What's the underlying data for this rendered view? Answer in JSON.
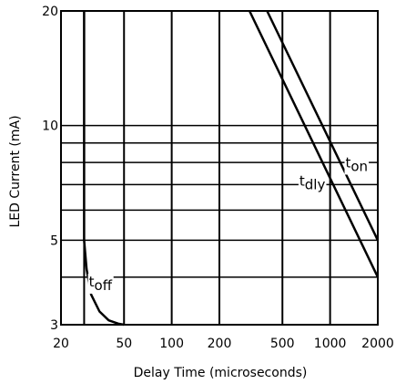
{
  "chart_data": {
    "type": "line",
    "title": "",
    "xlabel": "Delay Time (microseconds)",
    "ylabel": "LED Current (mA)",
    "x_scale": "log",
    "y_scale": "log",
    "xlim": [
      20,
      2000
    ],
    "ylim": [
      3,
      20
    ],
    "x_ticks": [
      {
        "value": 20,
        "label": "20"
      },
      {
        "value": 50,
        "label": "50"
      },
      {
        "value": 100,
        "label": "100"
      },
      {
        "value": 200,
        "label": "200"
      },
      {
        "value": 500,
        "label": "500"
      },
      {
        "value": 1000,
        "label": "1000"
      },
      {
        "value": 2000,
        "label": "2000"
      }
    ],
    "y_ticks": [
      {
        "value": 3,
        "label": "3"
      },
      {
        "value": 5,
        "label": "5"
      },
      {
        "value": 10,
        "label": "10"
      },
      {
        "value": 20,
        "label": "20"
      }
    ],
    "x_grid": [
      20,
      28,
      50,
      100,
      200,
      500,
      1000,
      2000
    ],
    "y_grid": [
      3,
      4,
      5,
      6,
      7,
      8,
      9,
      10,
      20
    ],
    "grid": true,
    "legend": "none",
    "series": [
      {
        "key": "toff",
        "label_main": "t",
        "label_sub": "off",
        "label_at": [
          30,
          3.7
        ],
        "points": [
          [
            28,
            20
          ],
          [
            28,
            5
          ],
          [
            29,
            4.2
          ],
          [
            31,
            3.6
          ],
          [
            35,
            3.25
          ],
          [
            40,
            3.08
          ],
          [
            46,
            3.02
          ],
          [
            50,
            3.0
          ]
        ]
      },
      {
        "key": "tdly",
        "label_main": "t",
        "label_sub": "dly",
        "label_at": [
          640,
          6.8
        ],
        "points": [
          [
            310,
            20
          ],
          [
            2000,
            4.0
          ]
        ]
      },
      {
        "key": "ton",
        "label_main": "t",
        "label_sub": "on",
        "label_at": [
          1250,
          7.6
        ],
        "points": [
          [
            400,
            20
          ],
          [
            2000,
            5.0
          ]
        ]
      }
    ]
  }
}
